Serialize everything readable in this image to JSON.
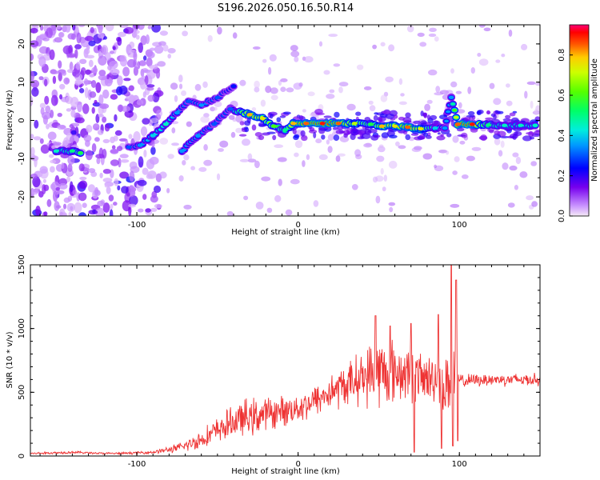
{
  "title": "S196.2026.050.16.50.R14",
  "chart_data": [
    {
      "type": "heatmap",
      "name": "spectrogram",
      "xlabel": "Height of straight line (km)",
      "ylabel": "Frequency (Hz)",
      "xlim": [
        -166,
        150
      ],
      "ylim": [
        -25,
        25
      ],
      "xticks": [
        -100,
        0,
        100
      ],
      "yticks": [
        -20,
        -10,
        0,
        10,
        20
      ],
      "colorbar": {
        "label": "Normalized spectral amplitude",
        "range": [
          0.0,
          0.95
        ],
        "ticks": [
          "0.0",
          "0.2",
          "0.4",
          "0.6",
          "0.8"
        ],
        "tick_values": [
          0.0,
          0.2,
          0.4,
          0.6,
          0.8
        ]
      },
      "ridge": [
        {
          "x": -150,
          "y": -8,
          "a": 0.45
        },
        {
          "x": -140,
          "y": -8,
          "a": 0.5
        },
        {
          "x": -135,
          "y": -8.5,
          "a": 0.55
        },
        {
          "x": -105,
          "y": -7,
          "a": 0.3
        },
        {
          "x": -98,
          "y": -6.5,
          "a": 0.35
        },
        {
          "x": -90,
          "y": -4,
          "a": 0.4
        },
        {
          "x": -82,
          "y": -1,
          "a": 0.45
        },
        {
          "x": -75,
          "y": 2,
          "a": 0.35
        },
        {
          "x": -68,
          "y": 5,
          "a": 0.3
        },
        {
          "x": -60,
          "y": 4,
          "a": 0.35
        },
        {
          "x": -50,
          "y": 6,
          "a": 0.3
        },
        {
          "x": -40,
          "y": 9,
          "a": 0.25
        },
        {
          "x": -72,
          "y": -8,
          "a": 0.35
        },
        {
          "x": -62,
          "y": -4,
          "a": 0.35
        },
        {
          "x": -52,
          "y": -1,
          "a": 0.3
        },
        {
          "x": -42,
          "y": 3,
          "a": 0.3
        },
        {
          "x": -30,
          "y": 1.5,
          "a": 0.8
        },
        {
          "x": -22,
          "y": 0.5,
          "a": 0.75
        },
        {
          "x": -15,
          "y": -1.5,
          "a": 0.6
        },
        {
          "x": -8,
          "y": -2.5,
          "a": 0.5
        },
        {
          "x": -3,
          "y": -0.8,
          "a": 0.8
        },
        {
          "x": 5,
          "y": -0.8,
          "a": 0.85
        },
        {
          "x": 15,
          "y": -0.8,
          "a": 0.9
        },
        {
          "x": 25,
          "y": -0.8,
          "a": 0.85
        },
        {
          "x": 35,
          "y": -0.8,
          "a": 0.7
        },
        {
          "x": 45,
          "y": -1,
          "a": 0.55
        },
        {
          "x": 52,
          "y": -1.5,
          "a": 0.8
        },
        {
          "x": 60,
          "y": -1.5,
          "a": 0.75
        },
        {
          "x": 68,
          "y": -1.8,
          "a": 0.85
        },
        {
          "x": 76,
          "y": -2.2,
          "a": 0.75
        },
        {
          "x": 85,
          "y": -2,
          "a": 0.4
        },
        {
          "x": 91,
          "y": -2,
          "a": 0.35
        },
        {
          "x": 95,
          "y": 6,
          "a": 0.35
        },
        {
          "x": 99,
          "y": -1,
          "a": 0.85
        },
        {
          "x": 108,
          "y": -1,
          "a": 0.9
        },
        {
          "x": 118,
          "y": -1.2,
          "a": 0.5
        },
        {
          "x": 128,
          "y": -1.3,
          "a": 0.45
        },
        {
          "x": 138,
          "y": -1.3,
          "a": 0.45
        },
        {
          "x": 147,
          "y": -1.3,
          "a": 0.45
        }
      ]
    },
    {
      "type": "line",
      "name": "snr",
      "xlabel": "Height of straight line (km)",
      "ylabel": "SNR (10 * v/v)",
      "xlim": [
        -166,
        150
      ],
      "ylim": [
        0,
        1500
      ],
      "xticks": [
        -100,
        0,
        100
      ],
      "yticks": [
        0,
        500,
        1000,
        1500
      ],
      "color": "#ee3333",
      "series": [
        {
          "name": "SNR",
          "x": [
            -166,
            -150,
            -140,
            -130,
            -120,
            -110,
            -100,
            -90,
            -80,
            -75,
            -70,
            -60,
            -50,
            -40,
            -35,
            -30,
            -20,
            -10,
            0,
            10,
            20,
            30,
            40,
            45,
            50,
            55,
            60,
            65,
            70,
            75,
            80,
            85,
            88,
            92,
            95,
            97,
            100,
            105,
            110,
            120,
            130,
            140,
            150
          ],
          "base": [
            20,
            25,
            30,
            25,
            20,
            20,
            25,
            30,
            50,
            60,
            80,
            130,
            200,
            270,
            290,
            300,
            330,
            350,
            380,
            430,
            500,
            560,
            620,
            640,
            650,
            660,
            660,
            650,
            640,
            620,
            600,
            620,
            580,
            560,
            600,
            620,
            590,
            590,
            595,
            600,
            600,
            600,
            600
          ],
          "noise": [
            10,
            12,
            12,
            10,
            10,
            10,
            12,
            15,
            30,
            40,
            55,
            90,
            120,
            150,
            170,
            180,
            160,
            140,
            140,
            150,
            170,
            200,
            250,
            300,
            350,
            330,
            300,
            280,
            260,
            240,
            220,
            260,
            300,
            350,
            400,
            420,
            80,
            60,
            60,
            60,
            60,
            60,
            60
          ],
          "peaks": [
            {
              "x": 48,
              "y": 1100
            },
            {
              "x": 57,
              "y": 1020
            },
            {
              "x": 70,
              "y": 1040
            },
            {
              "x": 87,
              "y": 1110
            },
            {
              "x": 95,
              "y": 1500
            },
            {
              "x": 98,
              "y": 1380
            }
          ],
          "dips": [
            {
              "x": 72,
              "y": 30
            },
            {
              "x": 89,
              "y": 60
            },
            {
              "x": 96,
              "y": 80
            },
            {
              "x": 99,
              "y": 120
            }
          ]
        }
      ]
    }
  ]
}
